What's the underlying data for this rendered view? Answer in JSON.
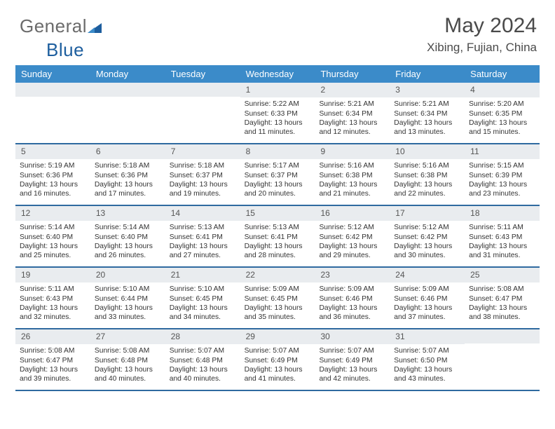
{
  "logo": {
    "part1": "General",
    "part2": "Blue"
  },
  "title": "May 2024",
  "location": "Xibing, Fujian, China",
  "colors": {
    "headerBg": "#3b8bc9",
    "headerText": "#ffffff",
    "dayNumBg": "#e9ecef",
    "weekBorder": "#2f6aa0",
    "bodyText": "#333333",
    "titleText": "#4a4a4a"
  },
  "fonts": {
    "body_pt": 10.3,
    "title_pt": 30,
    "location_pt": 17,
    "dow_pt": 13,
    "daynum_pt": 12
  },
  "layout": {
    "weeks": 5,
    "cellMinHeight": 86
  },
  "daysOfWeek": [
    "Sunday",
    "Monday",
    "Tuesday",
    "Wednesday",
    "Thursday",
    "Friday",
    "Saturday"
  ],
  "weeks": [
    [
      null,
      null,
      null,
      {
        "n": "1",
        "sr": "5:22 AM",
        "ss": "6:33 PM",
        "dlA": "Daylight: 13 hours",
        "dlB": "and 11 minutes."
      },
      {
        "n": "2",
        "sr": "5:21 AM",
        "ss": "6:34 PM",
        "dlA": "Daylight: 13 hours",
        "dlB": "and 12 minutes."
      },
      {
        "n": "3",
        "sr": "5:21 AM",
        "ss": "6:34 PM",
        "dlA": "Daylight: 13 hours",
        "dlB": "and 13 minutes."
      },
      {
        "n": "4",
        "sr": "5:20 AM",
        "ss": "6:35 PM",
        "dlA": "Daylight: 13 hours",
        "dlB": "and 15 minutes."
      }
    ],
    [
      {
        "n": "5",
        "sr": "5:19 AM",
        "ss": "6:36 PM",
        "dlA": "Daylight: 13 hours",
        "dlB": "and 16 minutes."
      },
      {
        "n": "6",
        "sr": "5:18 AM",
        "ss": "6:36 PM",
        "dlA": "Daylight: 13 hours",
        "dlB": "and 17 minutes."
      },
      {
        "n": "7",
        "sr": "5:18 AM",
        "ss": "6:37 PM",
        "dlA": "Daylight: 13 hours",
        "dlB": "and 19 minutes."
      },
      {
        "n": "8",
        "sr": "5:17 AM",
        "ss": "6:37 PM",
        "dlA": "Daylight: 13 hours",
        "dlB": "and 20 minutes."
      },
      {
        "n": "9",
        "sr": "5:16 AM",
        "ss": "6:38 PM",
        "dlA": "Daylight: 13 hours",
        "dlB": "and 21 minutes."
      },
      {
        "n": "10",
        "sr": "5:16 AM",
        "ss": "6:38 PM",
        "dlA": "Daylight: 13 hours",
        "dlB": "and 22 minutes."
      },
      {
        "n": "11",
        "sr": "5:15 AM",
        "ss": "6:39 PM",
        "dlA": "Daylight: 13 hours",
        "dlB": "and 23 minutes."
      }
    ],
    [
      {
        "n": "12",
        "sr": "5:14 AM",
        "ss": "6:40 PM",
        "dlA": "Daylight: 13 hours",
        "dlB": "and 25 minutes."
      },
      {
        "n": "13",
        "sr": "5:14 AM",
        "ss": "6:40 PM",
        "dlA": "Daylight: 13 hours",
        "dlB": "and 26 minutes."
      },
      {
        "n": "14",
        "sr": "5:13 AM",
        "ss": "6:41 PM",
        "dlA": "Daylight: 13 hours",
        "dlB": "and 27 minutes."
      },
      {
        "n": "15",
        "sr": "5:13 AM",
        "ss": "6:41 PM",
        "dlA": "Daylight: 13 hours",
        "dlB": "and 28 minutes."
      },
      {
        "n": "16",
        "sr": "5:12 AM",
        "ss": "6:42 PM",
        "dlA": "Daylight: 13 hours",
        "dlB": "and 29 minutes."
      },
      {
        "n": "17",
        "sr": "5:12 AM",
        "ss": "6:42 PM",
        "dlA": "Daylight: 13 hours",
        "dlB": "and 30 minutes."
      },
      {
        "n": "18",
        "sr": "5:11 AM",
        "ss": "6:43 PM",
        "dlA": "Daylight: 13 hours",
        "dlB": "and 31 minutes."
      }
    ],
    [
      {
        "n": "19",
        "sr": "5:11 AM",
        "ss": "6:43 PM",
        "dlA": "Daylight: 13 hours",
        "dlB": "and 32 minutes."
      },
      {
        "n": "20",
        "sr": "5:10 AM",
        "ss": "6:44 PM",
        "dlA": "Daylight: 13 hours",
        "dlB": "and 33 minutes."
      },
      {
        "n": "21",
        "sr": "5:10 AM",
        "ss": "6:45 PM",
        "dlA": "Daylight: 13 hours",
        "dlB": "and 34 minutes."
      },
      {
        "n": "22",
        "sr": "5:09 AM",
        "ss": "6:45 PM",
        "dlA": "Daylight: 13 hours",
        "dlB": "and 35 minutes."
      },
      {
        "n": "23",
        "sr": "5:09 AM",
        "ss": "6:46 PM",
        "dlA": "Daylight: 13 hours",
        "dlB": "and 36 minutes."
      },
      {
        "n": "24",
        "sr": "5:09 AM",
        "ss": "6:46 PM",
        "dlA": "Daylight: 13 hours",
        "dlB": "and 37 minutes."
      },
      {
        "n": "25",
        "sr": "5:08 AM",
        "ss": "6:47 PM",
        "dlA": "Daylight: 13 hours",
        "dlB": "and 38 minutes."
      }
    ],
    [
      {
        "n": "26",
        "sr": "5:08 AM",
        "ss": "6:47 PM",
        "dlA": "Daylight: 13 hours",
        "dlB": "and 39 minutes."
      },
      {
        "n": "27",
        "sr": "5:08 AM",
        "ss": "6:48 PM",
        "dlA": "Daylight: 13 hours",
        "dlB": "and 40 minutes."
      },
      {
        "n": "28",
        "sr": "5:07 AM",
        "ss": "6:48 PM",
        "dlA": "Daylight: 13 hours",
        "dlB": "and 40 minutes."
      },
      {
        "n": "29",
        "sr": "5:07 AM",
        "ss": "6:49 PM",
        "dlA": "Daylight: 13 hours",
        "dlB": "and 41 minutes."
      },
      {
        "n": "30",
        "sr": "5:07 AM",
        "ss": "6:49 PM",
        "dlA": "Daylight: 13 hours",
        "dlB": "and 42 minutes."
      },
      {
        "n": "31",
        "sr": "5:07 AM",
        "ss": "6:50 PM",
        "dlA": "Daylight: 13 hours",
        "dlB": "and 43 minutes."
      },
      null
    ]
  ],
  "labels": {
    "sunrisePrefix": "Sunrise: ",
    "sunsetPrefix": "Sunset: "
  }
}
